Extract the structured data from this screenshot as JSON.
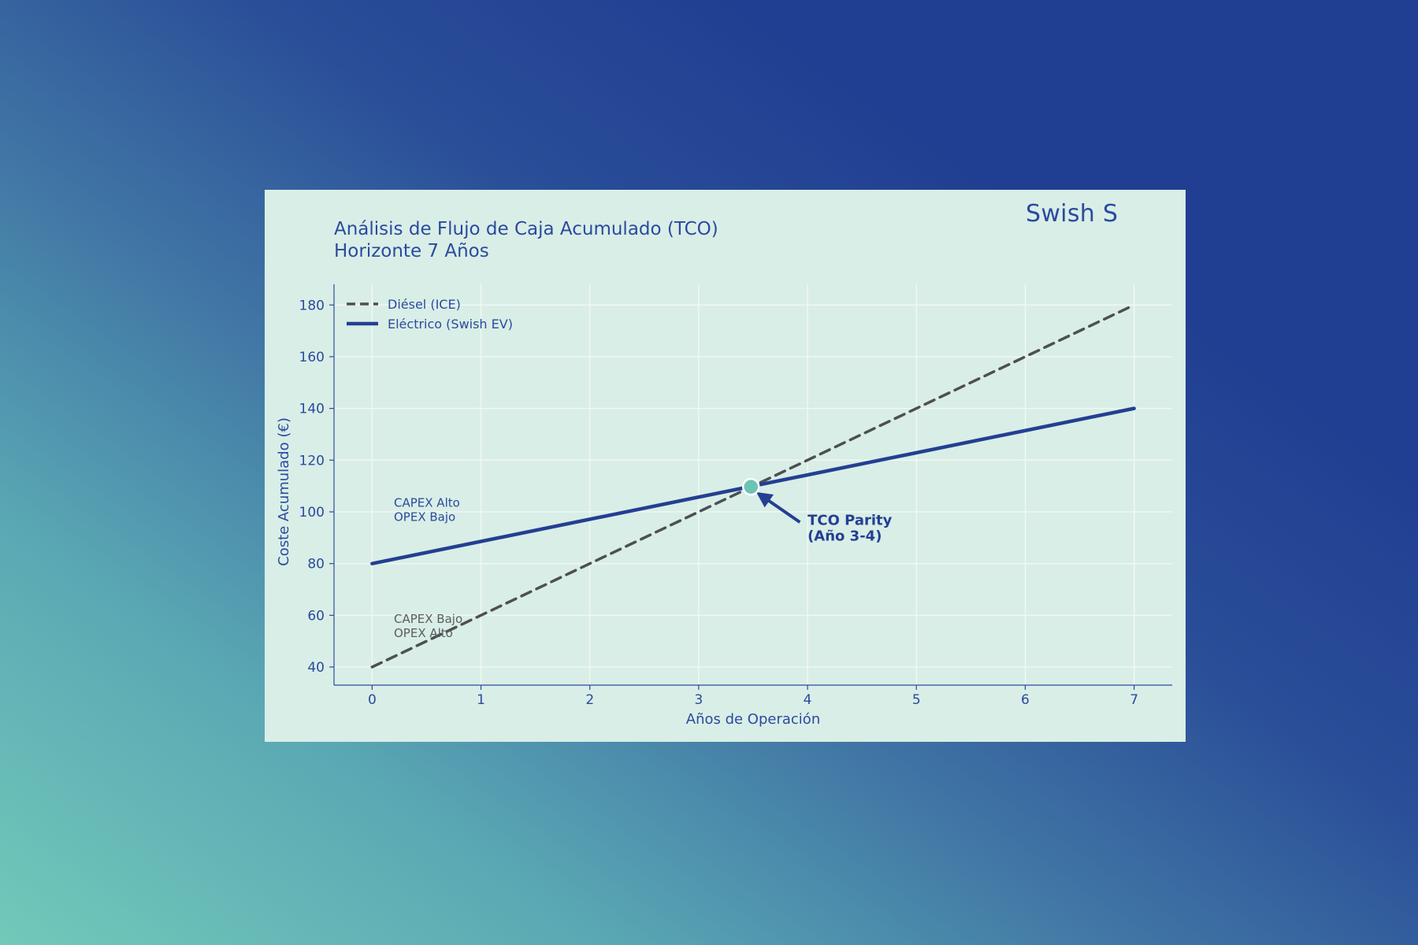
{
  "brand": "Swish S",
  "chart_data": {
    "type": "line",
    "title": "Análisis de Flujo de Caja Acumulado (TCO)",
    "subtitle": "Horizonte 7 Años",
    "xlabel": "Años de Operación",
    "ylabel": "Coste Acumulado (€)",
    "xlim": [
      -0.35,
      7.35
    ],
    "ylim": [
      33,
      188
    ],
    "x_ticks": [
      0,
      1,
      2,
      3,
      4,
      5,
      6,
      7
    ],
    "y_ticks": [
      40,
      60,
      80,
      100,
      120,
      140,
      160,
      180
    ],
    "grid": true,
    "legend_position": "top-left",
    "series": [
      {
        "name": "Diésel (ICE)",
        "x": [
          0,
          7
        ],
        "y": [
          40,
          180
        ],
        "color": "#4d4f55",
        "style": "dashed"
      },
      {
        "name": "Eléctrico (Swish EV)",
        "x": [
          0,
          7
        ],
        "y": [
          80,
          140
        ],
        "color": "#233f93",
        "style": "solid"
      }
    ],
    "annotations": [
      {
        "id": "parity",
        "lines": [
          "TCO Parity",
          "(Año 3-4)"
        ],
        "point": [
          3.48,
          109.7
        ],
        "text_at": [
          4.0,
          95
        ],
        "arrow_tail": [
          3.93,
          96
        ],
        "color": "#233f93",
        "marker_color": "#6cc4b3"
      },
      {
        "id": "ev-note",
        "lines": [
          "CAPEX Alto",
          "OPEX Bajo"
        ],
        "text_at": [
          0.2,
          102
        ],
        "color": "#2b4aa0"
      },
      {
        "id": "ice-note",
        "lines": [
          "CAPEX Bajo",
          "OPEX Alto"
        ],
        "text_at": [
          0.2,
          57
        ],
        "color": "#5a5d63"
      }
    ]
  }
}
